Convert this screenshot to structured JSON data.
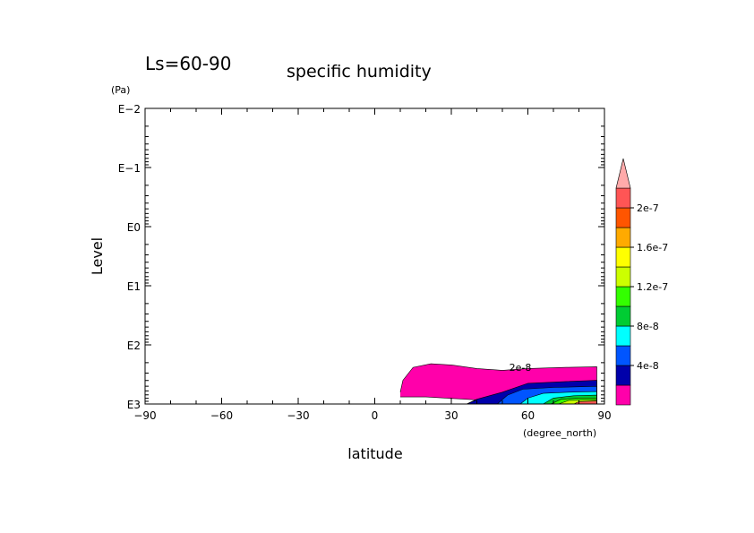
{
  "chart_data": {
    "type": "contour",
    "title_left": "Ls=60-90",
    "title": "specific humidity",
    "xlabel": "latitude",
    "xunit": "(degree_north)",
    "ylabel": "Level",
    "yunit": "(Pa)",
    "xlim": [
      -90,
      90
    ],
    "xticks": [
      -90,
      -60,
      -30,
      0,
      30,
      60,
      90
    ],
    "yscale": "log",
    "ylim_log10": [
      -2,
      3
    ],
    "yticks": [
      {
        "label": "E-2",
        "log10": -2
      },
      {
        "label": "E-1",
        "log10": -1
      },
      {
        "label": "E0",
        "log10": 0
      },
      {
        "label": "E1",
        "log10": 1
      },
      {
        "label": "E2",
        "log10": 2
      },
      {
        "label": "E3",
        "log10": 3
      }
    ],
    "contour_label": "2e-8",
    "contour_label_lat": 57,
    "contour_label_log10": 2.38,
    "colorbar": {
      "colors": [
        "#ff00aa",
        "#0000aa",
        "#0055ff",
        "#00ffff",
        "#00cc33",
        "#33ff00",
        "#ccff00",
        "#ffff00",
        "#ffaa00",
        "#ff5500",
        "#ff5555",
        "#ffaaaa"
      ],
      "labels": [
        "4e-8",
        "8e-8",
        "1.2e-7",
        "1.6e-7",
        "2e-7"
      ],
      "label_levels": [
        2,
        4,
        6,
        8,
        10
      ]
    },
    "filled_regions": [
      {
        "level": 0,
        "color": "#ff00aa",
        "points": [
          [
            10,
            2.8
          ],
          [
            11,
            2.6
          ],
          [
            15,
            2.38
          ],
          [
            22,
            2.32
          ],
          [
            30,
            2.34
          ],
          [
            40,
            2.4
          ],
          [
            50,
            2.43
          ],
          [
            60,
            2.4
          ],
          [
            75,
            2.38
          ],
          [
            87,
            2.37
          ],
          [
            87,
            3
          ],
          [
            36,
            3
          ],
          [
            40,
            2.93
          ],
          [
            20,
            2.88
          ],
          [
            10,
            2.88
          ]
        ]
      },
      {
        "level": 1,
        "color": "#0000aa",
        "points": [
          [
            36,
            3
          ],
          [
            40,
            2.92
          ],
          [
            50,
            2.8
          ],
          [
            60,
            2.65
          ],
          [
            75,
            2.62
          ],
          [
            87,
            2.6
          ],
          [
            87,
            3
          ]
        ]
      },
      {
        "level": 2,
        "color": "#0055ff",
        "points": [
          [
            48,
            3
          ],
          [
            52,
            2.85
          ],
          [
            58,
            2.75
          ],
          [
            70,
            2.72
          ],
          [
            87,
            2.7
          ],
          [
            87,
            3
          ]
        ]
      },
      {
        "level": 3,
        "color": "#00ffff",
        "points": [
          [
            57,
            3
          ],
          [
            60,
            2.9
          ],
          [
            66,
            2.82
          ],
          [
            76,
            2.8
          ],
          [
            87,
            2.79
          ],
          [
            87,
            3
          ]
        ]
      },
      {
        "level": 4,
        "color": "#00cc33",
        "points": [
          [
            66,
            3
          ],
          [
            70,
            2.9
          ],
          [
            78,
            2.86
          ],
          [
            87,
            2.85
          ],
          [
            87,
            3
          ]
        ]
      },
      {
        "level": 5,
        "color": "#33ff00",
        "points": [
          [
            69,
            3
          ],
          [
            73,
            2.92
          ],
          [
            80,
            2.9
          ],
          [
            87,
            2.9
          ],
          [
            87,
            3
          ]
        ]
      },
      {
        "level": 6,
        "color": "#ccff00",
        "points": [
          [
            72,
            3
          ],
          [
            76,
            2.94
          ],
          [
            87,
            2.93
          ],
          [
            87,
            3
          ]
        ]
      },
      {
        "level": 10,
        "color": "#ff5555",
        "points": [
          [
            78,
            3
          ],
          [
            80,
            2.96
          ],
          [
            87,
            2.95
          ],
          [
            87,
            3
          ]
        ]
      }
    ]
  }
}
